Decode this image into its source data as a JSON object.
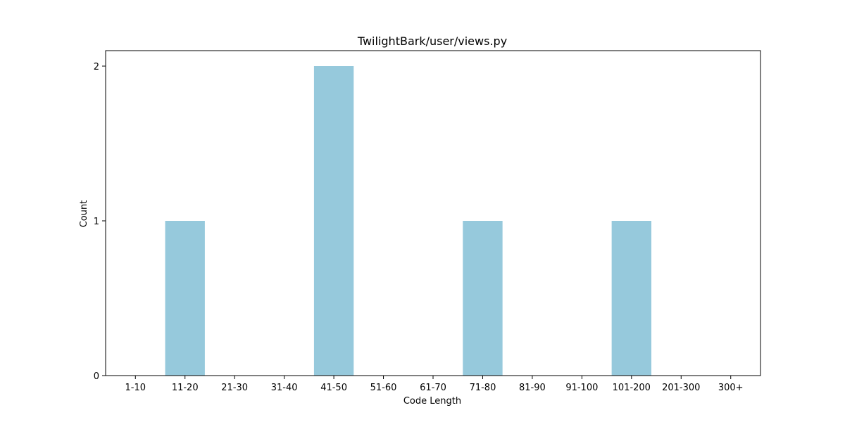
{
  "chart_data": {
    "type": "bar",
    "title": "TwilightBark/user/views.py",
    "xlabel": "Code Length",
    "ylabel": "Count",
    "categories": [
      "1-10",
      "11-20",
      "21-30",
      "31-40",
      "41-50",
      "51-60",
      "61-70",
      "71-80",
      "81-90",
      "91-100",
      "101-200",
      "201-300",
      "300+"
    ],
    "values": [
      0,
      1,
      0,
      0,
      2,
      0,
      0,
      1,
      0,
      0,
      1,
      0,
      0
    ],
    "ylim": [
      0,
      2.1
    ],
    "yticks": [
      0,
      1,
      2
    ],
    "grid": false,
    "bar_color": "#96c9dc"
  }
}
